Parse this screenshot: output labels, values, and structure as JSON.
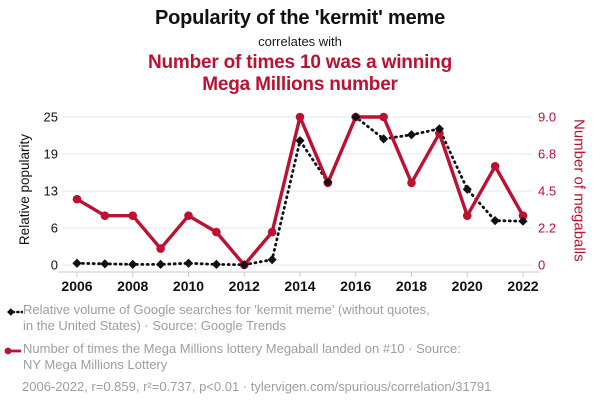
{
  "header": {
    "title": "Popularity of the 'kermit' meme",
    "connector": "correlates with",
    "title2_line1": "Number of times 10 was a winning",
    "title2_line2": "Mega Millions number"
  },
  "colors": {
    "accent_red": "#bb1132",
    "series_black": "#111111",
    "legend_gray": "#9e9e9e",
    "grid_gray": "#ececec",
    "axis_gray": "#c8c8c8"
  },
  "chart_data": {
    "type": "line",
    "title": "Popularity of the 'kermit' meme correlates with Number of times 10 was a winning Mega Millions number",
    "x": [
      2006,
      2007,
      2008,
      2009,
      2010,
      2011,
      2012,
      2013,
      2014,
      2015,
      2016,
      2017,
      2018,
      2019,
      2020,
      2021,
      2022
    ],
    "x_ticks": [
      2006,
      2008,
      2010,
      2012,
      2014,
      2016,
      2018,
      2020,
      2022
    ],
    "series": [
      {
        "name": "Relative volume of Google searches for 'kermit meme'",
        "axis": "left",
        "marker": "diamond",
        "line_style": "dotted",
        "color": "#111111",
        "values": [
          0.3,
          0.2,
          0.1,
          0.1,
          0.3,
          0.1,
          0.05,
          0.9,
          21,
          14,
          25,
          21.3,
          22,
          23,
          12.8,
          7.5,
          7.4
        ]
      },
      {
        "name": "Number of times the Mega Millions lottery Megaball landed on #10",
        "axis": "right",
        "marker": "circle",
        "line_style": "solid",
        "color": "#bb1132",
        "values": [
          4,
          3,
          3,
          1,
          3,
          2,
          0,
          2,
          9,
          5,
          9,
          9,
          5,
          8,
          3,
          6,
          3
        ]
      }
    ],
    "left_axis": {
      "title": "Relative popularity",
      "range": [
        0,
        25
      ],
      "tick_values": [
        0,
        6.25,
        12.5,
        18.75,
        25
      ],
      "tick_labels": [
        "0",
        "6",
        "13",
        "19",
        "25"
      ]
    },
    "right_axis": {
      "title": "Number of megaballs",
      "range": [
        0,
        9
      ],
      "tick_values": [
        0,
        2.25,
        4.5,
        6.75,
        9
      ],
      "tick_labels": [
        "0",
        "2.2",
        "4.5",
        "6.8",
        "9.0"
      ]
    },
    "grid": "horizontal",
    "legend_position": "bottom-left"
  },
  "legend": [
    {
      "icon": "diamond-dotted-line",
      "lines": [
        "Relative volume of Google searches for 'kermit meme' (without quotes,",
        "in the United States) · Source: Google Trends"
      ]
    },
    {
      "icon": "circle-solid-line",
      "lines": [
        "Number of times the Mega Millions lottery Megaball landed on #10 · Source:",
        "NY Mega Millions Lottery"
      ]
    }
  ],
  "footer": {
    "stats": "2006-2022, r=0.859, r²=0.737, p<0.01 · tylervigen.com/spurious/correlation/31791"
  }
}
